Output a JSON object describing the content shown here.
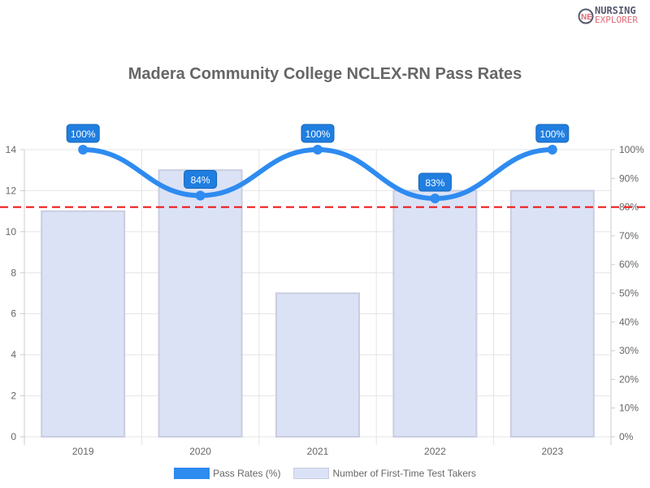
{
  "logo": {
    "line1": "NURSING",
    "line2": "EXPLORER"
  },
  "chart_data": {
    "type": "bar+line",
    "title": "Madera Community College NCLEX-RN Pass Rates",
    "categories": [
      "2019",
      "2020",
      "2021",
      "2022",
      "2023"
    ],
    "series": [
      {
        "name": "Pass Rates (%)",
        "type": "line",
        "axis": "right",
        "values": [
          100,
          84,
          100,
          83,
          100
        ],
        "labels": [
          "100%",
          "84%",
          "100%",
          "83%",
          "100%"
        ],
        "color": "#2e8bf0"
      },
      {
        "name": "Number of First-Time Test Takers",
        "type": "bar",
        "axis": "left",
        "values": [
          11,
          13,
          7,
          12,
          12
        ],
        "color": "#dbe2f6"
      }
    ],
    "left_axis": {
      "ylim": [
        0,
        14
      ],
      "ticks": [
        "0",
        "2",
        "4",
        "6",
        "8",
        "10",
        "12",
        "14"
      ]
    },
    "right_axis": {
      "ylim": [
        0,
        100
      ],
      "ticks": [
        "0%",
        "10%",
        "20%",
        "30%",
        "40%",
        "50%",
        "60%",
        "70%",
        "80%",
        "90%",
        "100%"
      ]
    },
    "reference_line": {
      "value": 80,
      "axis": "right",
      "color": "#ee1111",
      "style": "dashed"
    },
    "grid": true,
    "legend": "bottom"
  }
}
